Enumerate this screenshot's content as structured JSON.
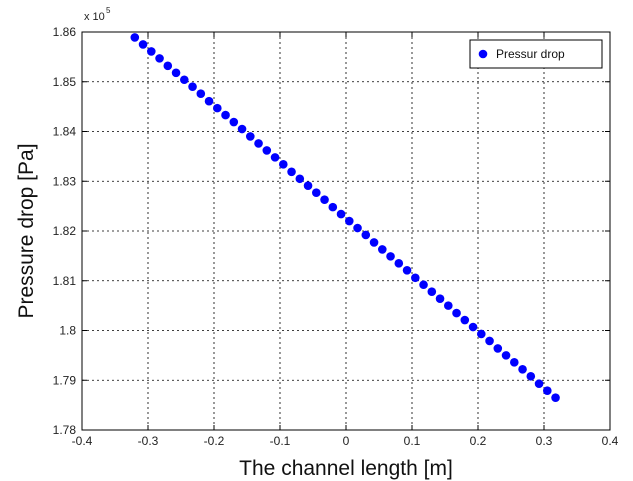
{
  "chart_data": {
    "type": "scatter",
    "title": "",
    "xlabel": "The channel length [m]",
    "ylabel": "Pressure drop [Pa]",
    "xlim": [
      -0.4,
      0.4
    ],
    "ylim": [
      1.78,
      1.86
    ],
    "y_multiplier_label": "x 10",
    "y_multiplier_exponent": "5",
    "xticks": [
      "-0.4",
      "-0.3",
      "-0.2",
      "-0.1",
      "0",
      "0.1",
      "0.2",
      "0.3",
      "0.4"
    ],
    "yticks": [
      "1.78",
      "1.79",
      "1.8",
      "1.81",
      "1.82",
      "1.83",
      "1.84",
      "1.85",
      "1.86"
    ],
    "grid": true,
    "legend_position": "top-right",
    "series": [
      {
        "name": "Pressur drop",
        "color": "#0000ff",
        "x": [
          -0.32,
          -0.3075,
          -0.295,
          -0.2825,
          -0.27,
          -0.2575,
          -0.245,
          -0.2325,
          -0.22,
          -0.2075,
          -0.195,
          -0.1825,
          -0.17,
          -0.1575,
          -0.145,
          -0.1325,
          -0.12,
          -0.1075,
          -0.095,
          -0.0825,
          -0.07,
          -0.0575,
          -0.045,
          -0.0325,
          -0.02,
          -0.0075,
          0.005,
          0.0175,
          0.03,
          0.0425,
          0.055,
          0.0675,
          0.08,
          0.0925,
          0.105,
          0.1175,
          0.13,
          0.1425,
          0.155,
          0.1675,
          0.18,
          0.1925,
          0.205,
          0.2175,
          0.23,
          0.2425,
          0.255,
          0.2675,
          0.28,
          0.2925,
          0.305,
          0.3175
        ],
        "y": [
          1.8589,
          1.8575,
          1.8561,
          1.8547,
          1.8532,
          1.8518,
          1.8504,
          1.849,
          1.8476,
          1.8461,
          1.8447,
          1.8433,
          1.8419,
          1.8405,
          1.839,
          1.8376,
          1.8362,
          1.8348,
          1.8334,
          1.8319,
          1.8305,
          1.8291,
          1.8277,
          1.8263,
          1.8248,
          1.8234,
          1.822,
          1.8206,
          1.8192,
          1.8177,
          1.8163,
          1.8149,
          1.8135,
          1.8121,
          1.8106,
          1.8092,
          1.8078,
          1.8064,
          1.805,
          1.8035,
          1.8021,
          1.8007,
          1.7993,
          1.7979,
          1.7964,
          1.795,
          1.7936,
          1.7922,
          1.7908,
          1.7893,
          1.7879,
          1.7865
        ]
      }
    ]
  }
}
